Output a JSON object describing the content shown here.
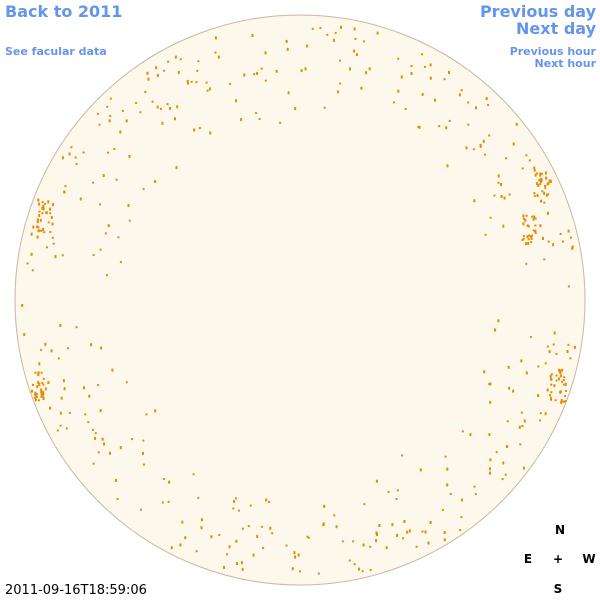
{
  "nav": {
    "back": "Back to 2011",
    "facular": "See facular data",
    "previous_day": "Previous day",
    "next_day": "Next day",
    "previous_hour": "Previous hour",
    "next_hour": "Next hour"
  },
  "compass": {
    "north": "N",
    "east": "E",
    "center": "+",
    "west": "W",
    "south": "S"
  },
  "timestamp": "2011-09-16T18:59:06"
}
